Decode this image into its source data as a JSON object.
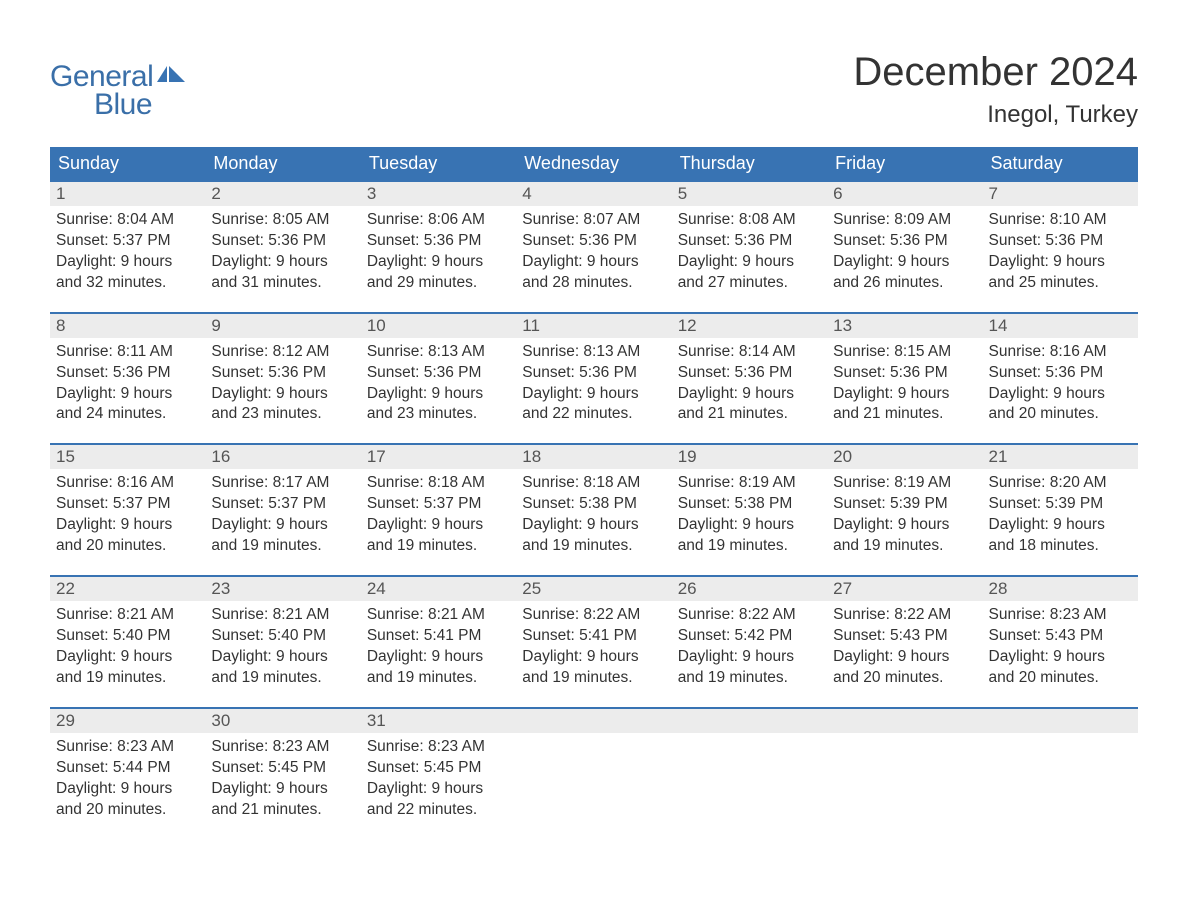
{
  "logo": {
    "text_general": "General",
    "text_blue": "Blue",
    "icon_color": "#3873b3",
    "text_color": "#3a6fa8"
  },
  "header": {
    "month_title": "December 2024",
    "location": "Inegol, Turkey"
  },
  "colors": {
    "header_bg": "#3873b3",
    "header_text": "#ffffff",
    "row_border": "#3873b3",
    "daynum_bg": "#ececec",
    "text": "#333333"
  },
  "day_names": [
    "Sunday",
    "Monday",
    "Tuesday",
    "Wednesday",
    "Thursday",
    "Friday",
    "Saturday"
  ],
  "weeks": [
    [
      {
        "num": "1",
        "sunrise": "8:04 AM",
        "sunset": "5:37 PM",
        "daylight": "9 hours and 32 minutes."
      },
      {
        "num": "2",
        "sunrise": "8:05 AM",
        "sunset": "5:36 PM",
        "daylight": "9 hours and 31 minutes."
      },
      {
        "num": "3",
        "sunrise": "8:06 AM",
        "sunset": "5:36 PM",
        "daylight": "9 hours and 29 minutes."
      },
      {
        "num": "4",
        "sunrise": "8:07 AM",
        "sunset": "5:36 PM",
        "daylight": "9 hours and 28 minutes."
      },
      {
        "num": "5",
        "sunrise": "8:08 AM",
        "sunset": "5:36 PM",
        "daylight": "9 hours and 27 minutes."
      },
      {
        "num": "6",
        "sunrise": "8:09 AM",
        "sunset": "5:36 PM",
        "daylight": "9 hours and 26 minutes."
      },
      {
        "num": "7",
        "sunrise": "8:10 AM",
        "sunset": "5:36 PM",
        "daylight": "9 hours and 25 minutes."
      }
    ],
    [
      {
        "num": "8",
        "sunrise": "8:11 AM",
        "sunset": "5:36 PM",
        "daylight": "9 hours and 24 minutes."
      },
      {
        "num": "9",
        "sunrise": "8:12 AM",
        "sunset": "5:36 PM",
        "daylight": "9 hours and 23 minutes."
      },
      {
        "num": "10",
        "sunrise": "8:13 AM",
        "sunset": "5:36 PM",
        "daylight": "9 hours and 23 minutes."
      },
      {
        "num": "11",
        "sunrise": "8:13 AM",
        "sunset": "5:36 PM",
        "daylight": "9 hours and 22 minutes."
      },
      {
        "num": "12",
        "sunrise": "8:14 AM",
        "sunset": "5:36 PM",
        "daylight": "9 hours and 21 minutes."
      },
      {
        "num": "13",
        "sunrise": "8:15 AM",
        "sunset": "5:36 PM",
        "daylight": "9 hours and 21 minutes."
      },
      {
        "num": "14",
        "sunrise": "8:16 AM",
        "sunset": "5:36 PM",
        "daylight": "9 hours and 20 minutes."
      }
    ],
    [
      {
        "num": "15",
        "sunrise": "8:16 AM",
        "sunset": "5:37 PM",
        "daylight": "9 hours and 20 minutes."
      },
      {
        "num": "16",
        "sunrise": "8:17 AM",
        "sunset": "5:37 PM",
        "daylight": "9 hours and 19 minutes."
      },
      {
        "num": "17",
        "sunrise": "8:18 AM",
        "sunset": "5:37 PM",
        "daylight": "9 hours and 19 minutes."
      },
      {
        "num": "18",
        "sunrise": "8:18 AM",
        "sunset": "5:38 PM",
        "daylight": "9 hours and 19 minutes."
      },
      {
        "num": "19",
        "sunrise": "8:19 AM",
        "sunset": "5:38 PM",
        "daylight": "9 hours and 19 minutes."
      },
      {
        "num": "20",
        "sunrise": "8:19 AM",
        "sunset": "5:39 PM",
        "daylight": "9 hours and 19 minutes."
      },
      {
        "num": "21",
        "sunrise": "8:20 AM",
        "sunset": "5:39 PM",
        "daylight": "9 hours and 18 minutes."
      }
    ],
    [
      {
        "num": "22",
        "sunrise": "8:21 AM",
        "sunset": "5:40 PM",
        "daylight": "9 hours and 19 minutes."
      },
      {
        "num": "23",
        "sunrise": "8:21 AM",
        "sunset": "5:40 PM",
        "daylight": "9 hours and 19 minutes."
      },
      {
        "num": "24",
        "sunrise": "8:21 AM",
        "sunset": "5:41 PM",
        "daylight": "9 hours and 19 minutes."
      },
      {
        "num": "25",
        "sunrise": "8:22 AM",
        "sunset": "5:41 PM",
        "daylight": "9 hours and 19 minutes."
      },
      {
        "num": "26",
        "sunrise": "8:22 AM",
        "sunset": "5:42 PM",
        "daylight": "9 hours and 19 minutes."
      },
      {
        "num": "27",
        "sunrise": "8:22 AM",
        "sunset": "5:43 PM",
        "daylight": "9 hours and 20 minutes."
      },
      {
        "num": "28",
        "sunrise": "8:23 AM",
        "sunset": "5:43 PM",
        "daylight": "9 hours and 20 minutes."
      }
    ],
    [
      {
        "num": "29",
        "sunrise": "8:23 AM",
        "sunset": "5:44 PM",
        "daylight": "9 hours and 20 minutes."
      },
      {
        "num": "30",
        "sunrise": "8:23 AM",
        "sunset": "5:45 PM",
        "daylight": "9 hours and 21 minutes."
      },
      {
        "num": "31",
        "sunrise": "8:23 AM",
        "sunset": "5:45 PM",
        "daylight": "9 hours and 22 minutes."
      },
      {
        "empty": true
      },
      {
        "empty": true
      },
      {
        "empty": true
      },
      {
        "empty": true
      }
    ]
  ],
  "labels": {
    "sunrise": "Sunrise: ",
    "sunset": "Sunset: ",
    "daylight": "Daylight: "
  }
}
